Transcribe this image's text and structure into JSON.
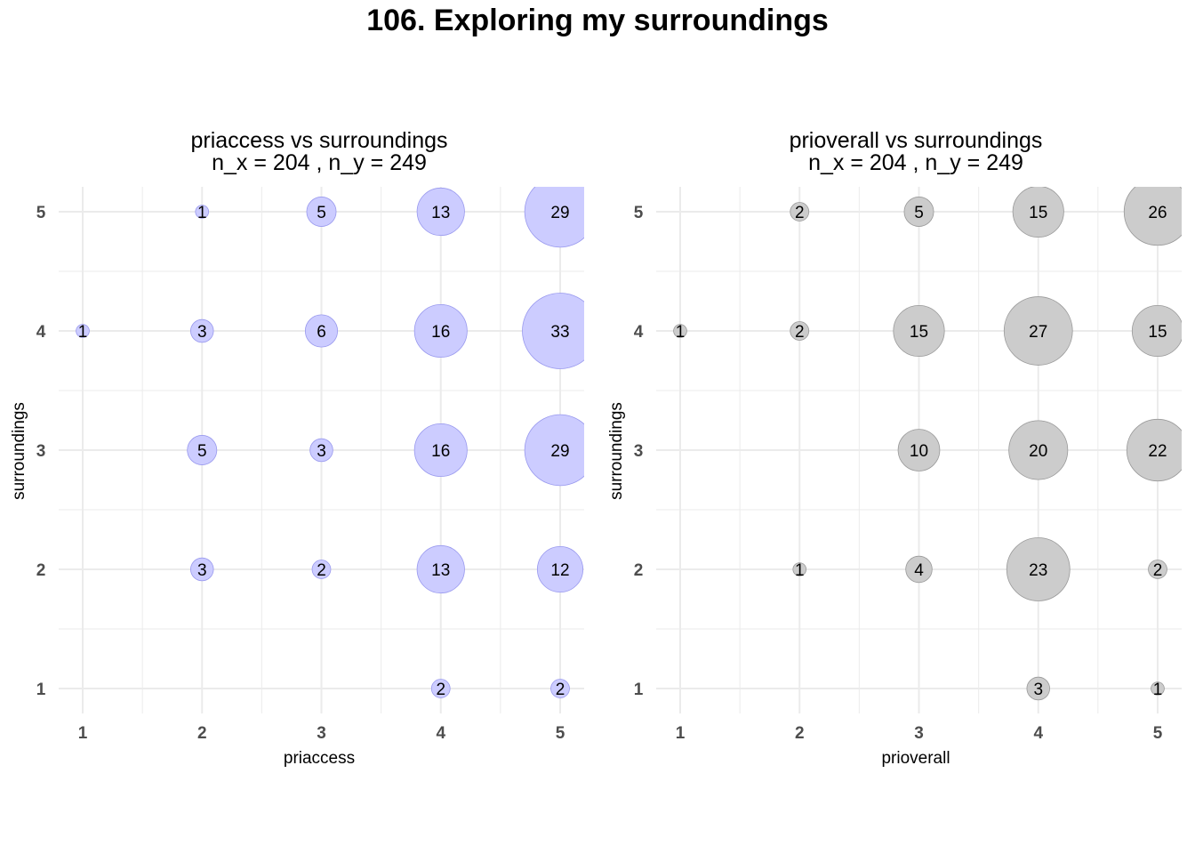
{
  "title": "106. Exploring my surroundings",
  "chart_data": [
    {
      "type": "scatter",
      "title": "priaccess vs surroundings",
      "subtitle": "n_x = 204 , n_y = 249",
      "xlabel": "priaccess",
      "ylabel": "surroundings",
      "x_ticks": [
        "1",
        "2",
        "3",
        "4",
        "5"
      ],
      "y_ticks": [
        "1",
        "2",
        "3",
        "4",
        "5"
      ],
      "xlim": [
        1,
        5
      ],
      "ylim": [
        1,
        5
      ],
      "grid": true,
      "fill_color": "#ccccff",
      "stroke_color": "#9999ee",
      "points": [
        {
          "x": 2,
          "y": 5,
          "count": 1
        },
        {
          "x": 3,
          "y": 5,
          "count": 5
        },
        {
          "x": 4,
          "y": 5,
          "count": 13
        },
        {
          "x": 5,
          "y": 5,
          "count": 29
        },
        {
          "x": 1,
          "y": 4,
          "count": 1
        },
        {
          "x": 2,
          "y": 4,
          "count": 3
        },
        {
          "x": 3,
          "y": 4,
          "count": 6
        },
        {
          "x": 4,
          "y": 4,
          "count": 16
        },
        {
          "x": 5,
          "y": 4,
          "count": 33
        },
        {
          "x": 2,
          "y": 3,
          "count": 5
        },
        {
          "x": 3,
          "y": 3,
          "count": 3
        },
        {
          "x": 4,
          "y": 3,
          "count": 16
        },
        {
          "x": 5,
          "y": 3,
          "count": 29
        },
        {
          "x": 2,
          "y": 2,
          "count": 3
        },
        {
          "x": 3,
          "y": 2,
          "count": 2
        },
        {
          "x": 4,
          "y": 2,
          "count": 13
        },
        {
          "x": 5,
          "y": 2,
          "count": 12
        },
        {
          "x": 4,
          "y": 1,
          "count": 2
        },
        {
          "x": 5,
          "y": 1,
          "count": 2
        }
      ]
    },
    {
      "type": "scatter",
      "title": "prioverall vs surroundings",
      "subtitle": "n_x = 204 , n_y = 249",
      "xlabel": "prioverall",
      "ylabel": "surroundings",
      "x_ticks": [
        "1",
        "2",
        "3",
        "4",
        "5"
      ],
      "y_ticks": [
        "1",
        "2",
        "3",
        "4",
        "5"
      ],
      "xlim": [
        1,
        5
      ],
      "ylim": [
        1,
        5
      ],
      "grid": true,
      "fill_color": "#cccccc",
      "stroke_color": "#999999",
      "points": [
        {
          "x": 2,
          "y": 5,
          "count": 2
        },
        {
          "x": 3,
          "y": 5,
          "count": 5
        },
        {
          "x": 4,
          "y": 5,
          "count": 15
        },
        {
          "x": 5,
          "y": 5,
          "count": 26
        },
        {
          "x": 1,
          "y": 4,
          "count": 1
        },
        {
          "x": 2,
          "y": 4,
          "count": 2
        },
        {
          "x": 3,
          "y": 4,
          "count": 15
        },
        {
          "x": 4,
          "y": 4,
          "count": 27
        },
        {
          "x": 5,
          "y": 4,
          "count": 15
        },
        {
          "x": 3,
          "y": 3,
          "count": 10
        },
        {
          "x": 4,
          "y": 3,
          "count": 20
        },
        {
          "x": 5,
          "y": 3,
          "count": 22
        },
        {
          "x": 2,
          "y": 2,
          "count": 1
        },
        {
          "x": 3,
          "y": 2,
          "count": 4
        },
        {
          "x": 4,
          "y": 2,
          "count": 23
        },
        {
          "x": 5,
          "y": 2,
          "count": 2
        },
        {
          "x": 4,
          "y": 1,
          "count": 3
        },
        {
          "x": 5,
          "y": 1,
          "count": 1
        }
      ]
    }
  ]
}
